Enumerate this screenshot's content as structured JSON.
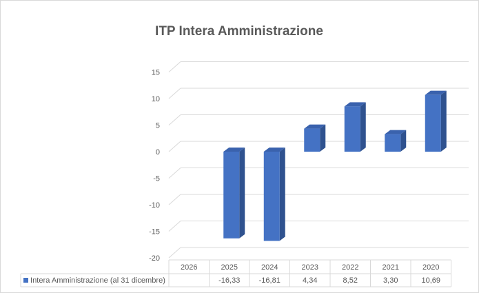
{
  "chart_data": {
    "type": "bar",
    "style": "3d-column with data table",
    "title": "ITP Intera Amministrazione",
    "categories": [
      "2026",
      "2025",
      "2024",
      "2023",
      "2022",
      "2021",
      "2020"
    ],
    "series": [
      {
        "name": "Intera Amministrazione (al 31 dicembre)",
        "values": [
          null,
          -16.33,
          -16.81,
          4.34,
          8.52,
          3.3,
          10.69
        ],
        "labels": [
          "",
          "-16,33",
          "-16,81",
          "4,34",
          "8,52",
          "3,30",
          "10,69"
        ],
        "color": "#4472c4"
      }
    ],
    "yticks": [
      "15",
      "10",
      "5",
      "0",
      "-5",
      "-10",
      "-15",
      "-20"
    ],
    "ytick_values": [
      15,
      10,
      5,
      0,
      -5,
      -10,
      -15,
      -20
    ],
    "ylim": [
      -20,
      15
    ],
    "grid": true,
    "legend": "data-table"
  }
}
